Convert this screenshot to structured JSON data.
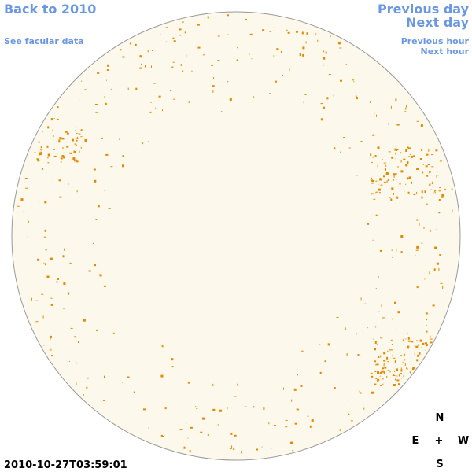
{
  "links": {
    "back": "Back to 2010",
    "facular": "See facular data",
    "previous_day": "Previous day",
    "next_day": "Next day",
    "previous_hour": "Previous hour",
    "next_hour": "Next hour"
  },
  "timestamp": "2010-10-27T03:59:01",
  "compass": {
    "north": "N",
    "east": "E",
    "center": "+",
    "west": "W",
    "south": "S"
  }
}
